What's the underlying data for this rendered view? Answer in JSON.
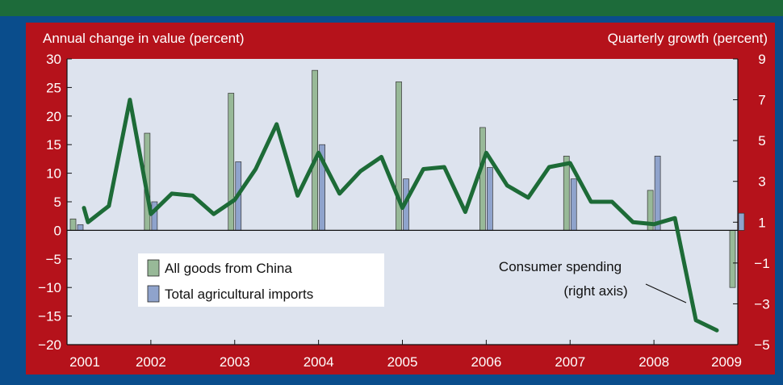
{
  "chart_data": {
    "type": "bar+line",
    "colors": {
      "frame": "#b5121b",
      "side_band": "#0a4d8c",
      "top_band": "#1d6b3a",
      "plot_bg": "#dde3ee",
      "china_bar": "#98b998",
      "agri_bar": "#8fa3cc",
      "line": "#1d6b37"
    },
    "left_axis": {
      "label": "Annual change in value (percent)",
      "ylim": [
        -20,
        30
      ],
      "ticks": [
        "30",
        "25",
        "20",
        "15",
        "10",
        "5",
        "0",
        "−5",
        "−10",
        "−15",
        "−20"
      ]
    },
    "right_axis": {
      "label": "Quarterly growth (percent)",
      "ylim": [
        -5,
        9
      ],
      "ticks": [
        "9",
        "7",
        "5",
        "3",
        "1",
        "−1",
        "−3",
        "−5"
      ]
    },
    "x_axis": {
      "range": [
        2001,
        2009
      ],
      "tick_labels": [
        "2001",
        "2002",
        "2003",
        "2004",
        "2005",
        "2006",
        "2007",
        "2008",
        "2009"
      ]
    },
    "bar_series": [
      {
        "name": "All goods from China",
        "x": [
          2001,
          2002,
          2003,
          2004,
          2005,
          2006,
          2007,
          2008,
          2009
        ],
        "values": [
          2,
          17,
          24,
          28,
          26,
          18,
          13,
          7,
          -10
        ]
      },
      {
        "name": "Total agricultural imports",
        "x": [
          2001,
          2002,
          2003,
          2004,
          2005,
          2006,
          2007,
          2008,
          2009
        ],
        "values": [
          1,
          5,
          12,
          15,
          9,
          11,
          9,
          13,
          3
        ]
      }
    ],
    "line_series": {
      "name": "Consumer spending",
      "axis": "right",
      "x": [
        2001.0,
        2001.25,
        2001.5,
        2001.75,
        2002.0,
        2002.25,
        2002.5,
        2002.75,
        2003.0,
        2003.25,
        2003.5,
        2003.75,
        2004.0,
        2004.25,
        2004.5,
        2004.75,
        2005.0,
        2005.25,
        2005.5,
        2005.75,
        2006.0,
        2006.25,
        2006.5,
        2006.75,
        2007.0,
        2007.25,
        2007.5,
        2007.75,
        2008.0,
        2008.25,
        2008.5,
        2008.75
      ],
      "values": [
        1.7,
        1.0,
        1.8,
        7.0,
        1.4,
        2.4,
        2.3,
        1.4,
        2.1,
        3.6,
        5.8,
        2.3,
        4.4,
        2.4,
        3.5,
        4.2,
        1.7,
        3.6,
        3.7,
        1.5,
        4.4,
        2.8,
        2.2,
        3.7,
        3.9,
        2.0,
        2.0,
        1.0,
        0.9,
        1.2,
        -3.8,
        -4.3
      ]
    },
    "legend": {
      "placement": "lower-left",
      "items": [
        "All goods from China",
        "Total agricultural imports"
      ]
    },
    "annotation": {
      "line1": "Consumer spending",
      "line2": "(right axis)"
    },
    "grid": false
  }
}
